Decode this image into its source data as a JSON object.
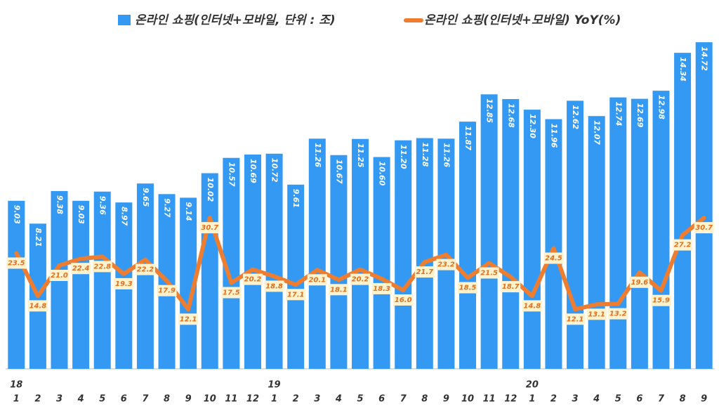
{
  "chart_data": {
    "type": "bar-line",
    "categories": [
      "1",
      "2",
      "3",
      "4",
      "5",
      "6",
      "7",
      "8",
      "9",
      "10",
      "11",
      "12",
      "1",
      "2",
      "3",
      "4",
      "5",
      "6",
      "7",
      "8",
      "9",
      "10",
      "11",
      "12",
      "1",
      "2",
      "3",
      "4",
      "5",
      "6",
      "7",
      "8",
      "9"
    ],
    "x_groups": [
      "18",
      null,
      null,
      null,
      null,
      null,
      null,
      null,
      null,
      null,
      null,
      null,
      "19",
      null,
      null,
      null,
      null,
      null,
      null,
      null,
      null,
      null,
      null,
      null,
      "20",
      null,
      null,
      null,
      null,
      null,
      null,
      null,
      null
    ],
    "series": [
      {
        "name": "온라인 쇼핑(인터넷+모바일, 단위 : 조)",
        "color": "#3399f3",
        "values": [
          9.03,
          8.21,
          9.38,
          9.03,
          9.36,
          8.97,
          9.65,
          9.27,
          9.14,
          10.02,
          10.57,
          10.69,
          10.72,
          9.61,
          11.26,
          10.67,
          11.25,
          10.6,
          11.2,
          11.28,
          11.26,
          11.87,
          12.85,
          12.68,
          12.3,
          11.96,
          12.62,
          12.07,
          12.74,
          12.69,
          12.98,
          14.34,
          14.72
        ],
        "value_labels": [
          "9.03",
          "8.21",
          "9.38",
          "9.03",
          "9.36",
          "8.97",
          "9.65",
          "9.27",
          "9.14",
          "10.02",
          "10.57",
          "10.69",
          "10.72",
          "9.61",
          "11.26",
          "10.67",
          "11.25",
          "10.60",
          "11.20",
          "11.28",
          "11.26",
          "11.87",
          "12.85",
          "12.68",
          "12.30",
          "11.96",
          "12.62",
          "12.07",
          "12.74",
          "12.69",
          "12.98",
          "14.34",
          "14.72"
        ]
      },
      {
        "name": "온라인 쇼핑(인터넷+모바일) YoY(%)",
        "color": "#ed7d31",
        "axis": "y2",
        "values": [
          23.5,
          14.8,
          21.0,
          22.4,
          22.8,
          19.3,
          22.2,
          17.9,
          12.1,
          30.7,
          17.5,
          20.2,
          18.8,
          17.1,
          20.1,
          18.1,
          20.2,
          18.3,
          16.0,
          21.7,
          23.2,
          18.5,
          21.5,
          18.7,
          14.8,
          24.5,
          12.1,
          13.1,
          13.2,
          19.6,
          15.9,
          27.2,
          30.7
        ],
        "value_labels": [
          "23.5",
          "14.8",
          "21.0",
          "22.4",
          "22.8",
          "19.3",
          "22.2",
          "17.9",
          "12.1",
          "30.7",
          "17.5",
          "20.2",
          "18.8",
          "17.1",
          "20.1",
          "18.1",
          "20.2",
          "18.3",
          "16.0",
          "21.7",
          "23.2",
          "18.5",
          "21.5",
          "18.7",
          "14.8",
          "24.5",
          "12.1",
          "13.1",
          "13.2",
          "19.6",
          "15.9",
          "27.2",
          "30.7"
        ]
      }
    ],
    "ylim": [
      3,
      15
    ],
    "y2lim": [
      0,
      68
    ]
  }
}
